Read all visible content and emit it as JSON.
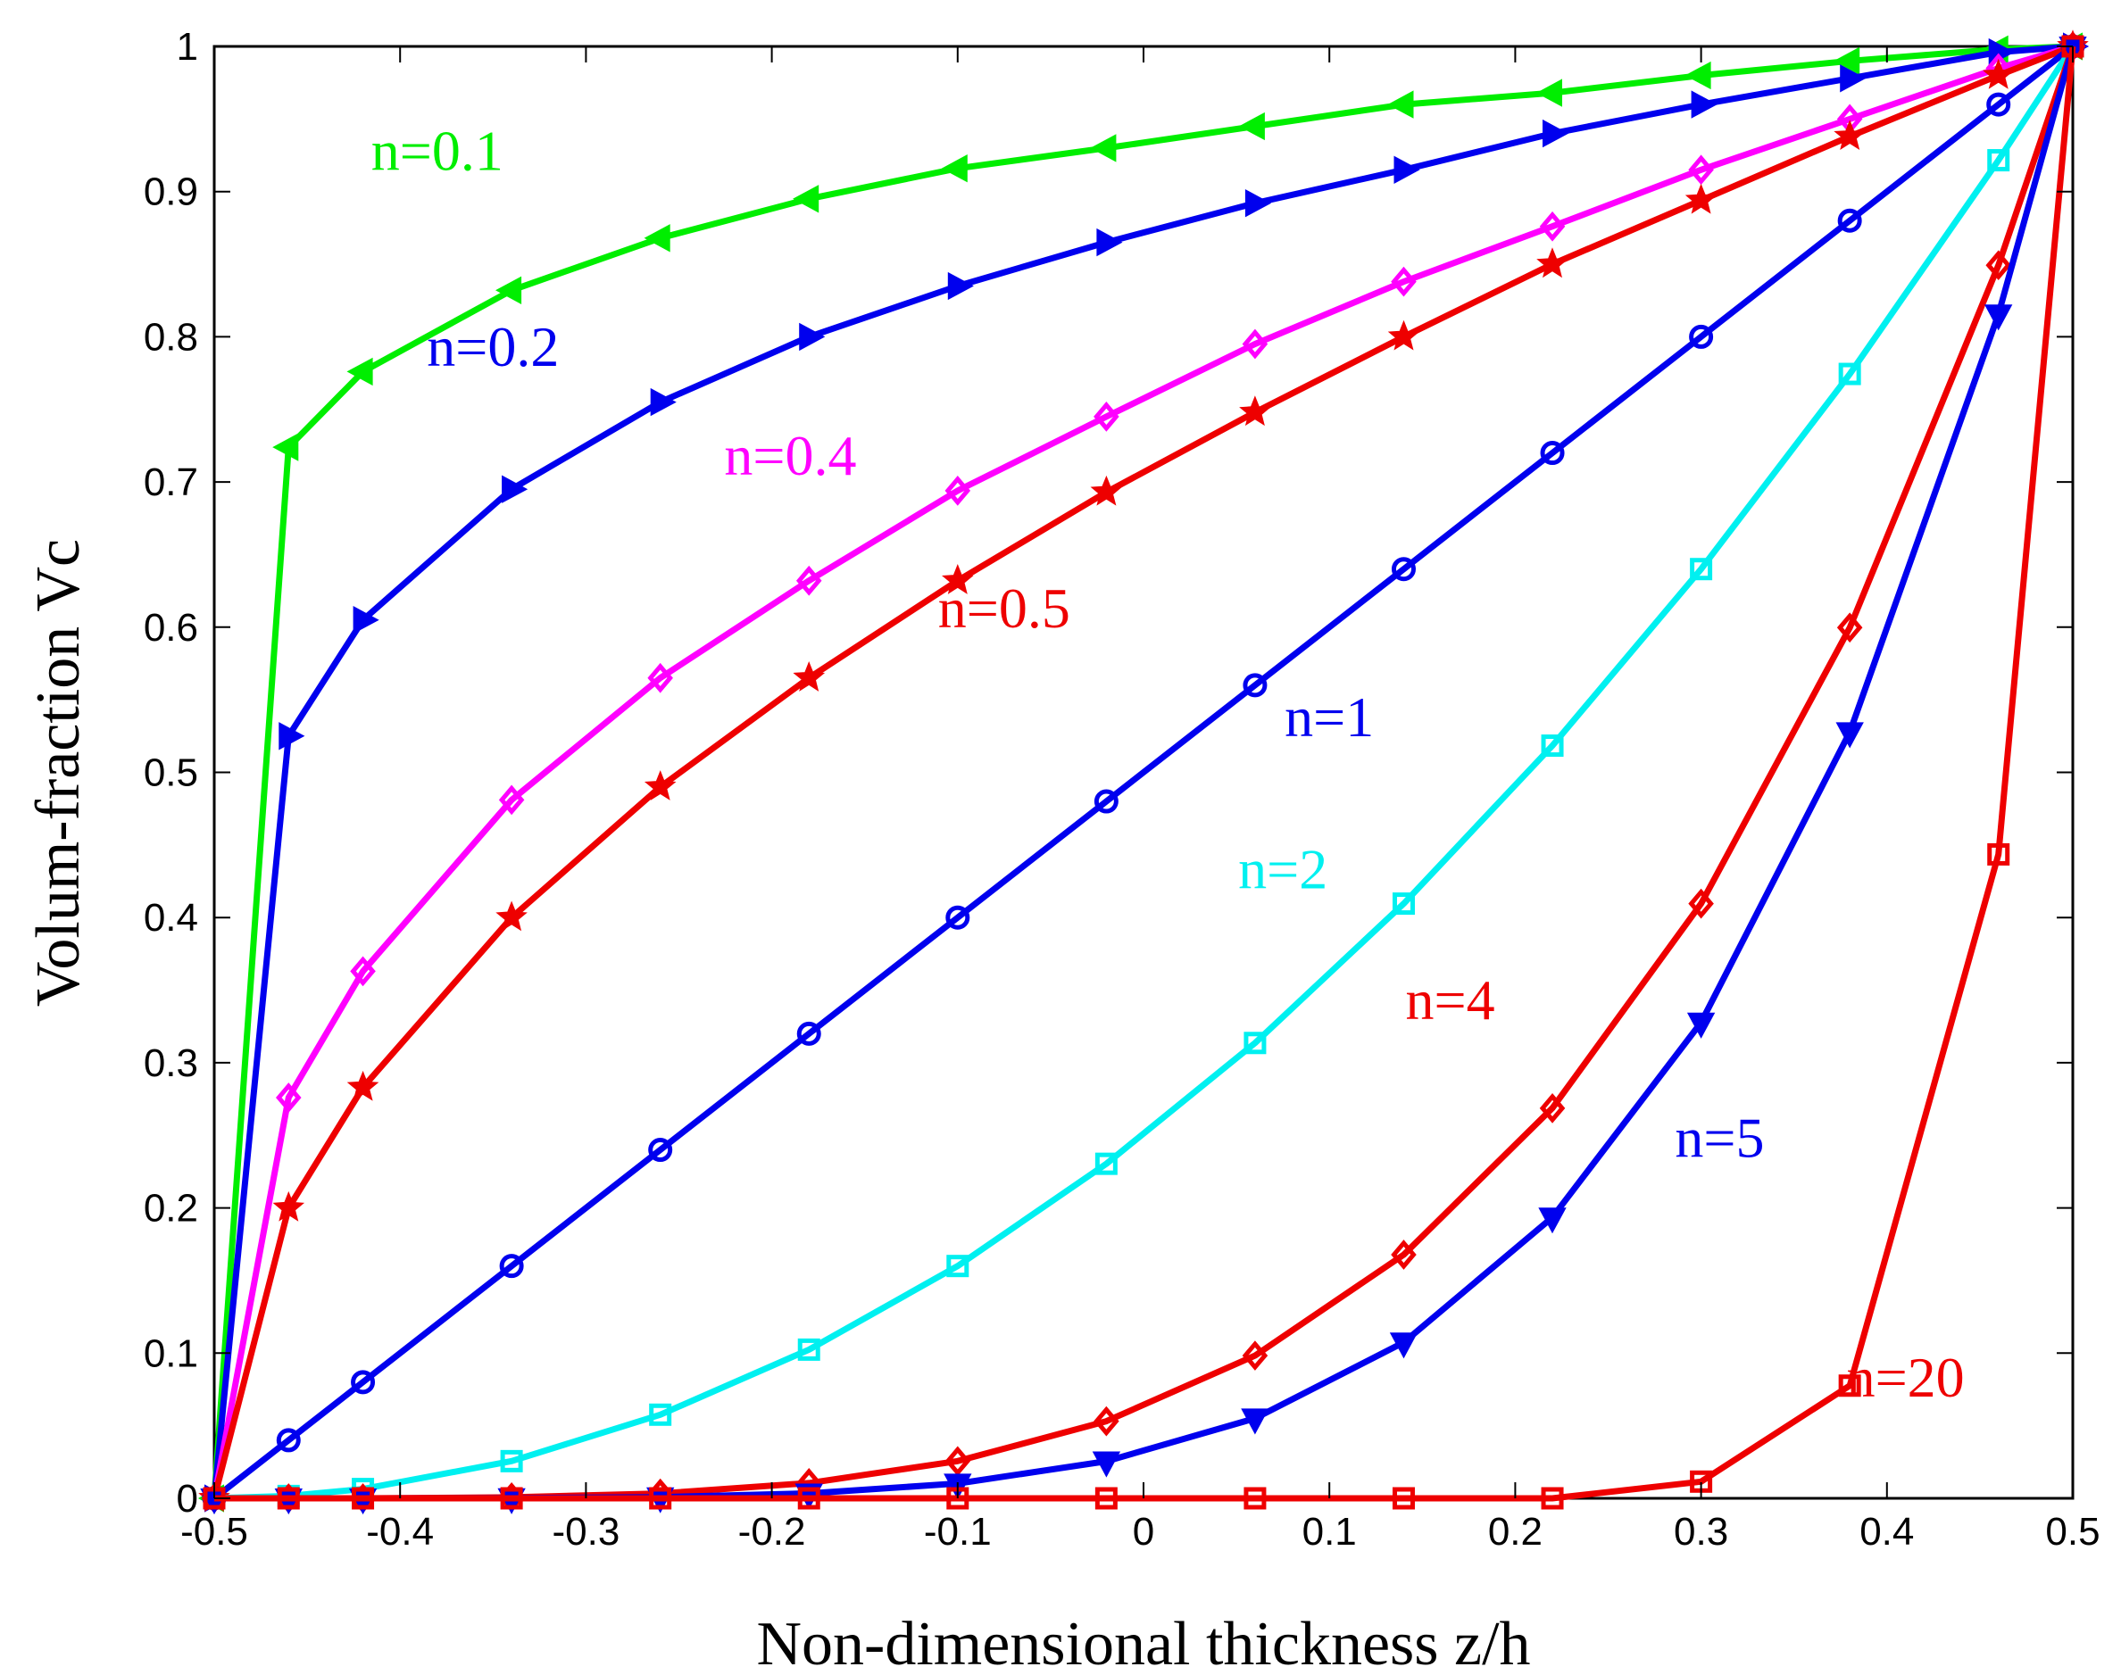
{
  "chart_data": {
    "type": "line",
    "title": "",
    "xlabel": "Non-dimensional thickness z/h",
    "ylabel": "Volum-fraction Vc",
    "xlim": [
      -0.5,
      0.5
    ],
    "ylim": [
      0,
      1
    ],
    "grid": false,
    "xticks": [
      -0.5,
      -0.4,
      -0.3,
      -0.2,
      -0.1,
      0,
      0.1,
      0.2,
      0.3,
      0.4,
      0.5
    ],
    "xtick_labels": [
      "-0.5",
      "-0.4",
      "-0.3",
      "-0.2",
      "-0.1",
      "0",
      "0.1",
      "0.2",
      "0.3",
      "0.4",
      "0.5"
    ],
    "yticks": [
      0,
      0.1,
      0.2,
      0.3,
      0.4,
      0.5,
      0.6,
      0.7,
      0.8,
      0.9,
      1
    ],
    "ytick_labels": [
      "0",
      "0.1",
      "0.2",
      "0.3",
      "0.4",
      "0.5",
      "0.6",
      "0.7",
      "0.8",
      "0.9",
      "1"
    ],
    "x": [
      -0.5,
      -0.46,
      -0.42,
      -0.34,
      -0.26,
      -0.18,
      -0.1,
      -0.02,
      0.06,
      0.14,
      0.22,
      0.3,
      0.38,
      0.46,
      0.5
    ],
    "series": [
      {
        "name": "n=0.1",
        "color": "#00ee00",
        "marker": "triangle-left",
        "values": [
          0,
          0.724,
          0.776,
          0.832,
          0.868,
          0.895,
          0.916,
          0.93,
          0.945,
          0.96,
          0.968,
          0.98,
          0.99,
          0.998,
          1
        ],
        "label": {
          "x": -0.38,
          "y": 0.915
        }
      },
      {
        "name": "n=0.2",
        "color": "#0000ee",
        "marker": "triangle-right",
        "values": [
          0,
          0.525,
          0.605,
          0.695,
          0.755,
          0.8,
          0.835,
          0.865,
          0.892,
          0.915,
          0.94,
          0.96,
          0.978,
          0.996,
          1
        ],
        "label": {
          "x": -0.35,
          "y": 0.78
        }
      },
      {
        "name": "n=0.4",
        "color": "#ff00ff",
        "marker": "diamond",
        "values": [
          0,
          0.276,
          0.363,
          0.481,
          0.565,
          0.632,
          0.694,
          0.745,
          0.795,
          0.838,
          0.876,
          0.915,
          0.95,
          0.985,
          1
        ],
        "label": {
          "x": -0.19,
          "y": 0.705
        }
      },
      {
        "name": "n=0.5",
        "color": "#ee0000",
        "marker": "star",
        "values": [
          0,
          0.2,
          0.283,
          0.4,
          0.49,
          0.565,
          0.632,
          0.693,
          0.748,
          0.8,
          0.85,
          0.894,
          0.938,
          0.98,
          1
        ],
        "label": {
          "x": -0.075,
          "y": 0.6
        }
      },
      {
        "name": "n=1",
        "color": "#0000ee",
        "marker": "circle",
        "values": [
          0,
          0.04,
          0.08,
          0.16,
          0.24,
          0.32,
          0.4,
          0.48,
          0.56,
          0.64,
          0.72,
          0.8,
          0.88,
          0.96,
          1
        ],
        "label": {
          "x": 0.1,
          "y": 0.525
        }
      },
      {
        "name": "n=2",
        "color": "#00f0f0",
        "marker": "square",
        "values": [
          0,
          0.0016,
          0.0064,
          0.0256,
          0.0576,
          0.1024,
          0.16,
          0.2304,
          0.3136,
          0.4096,
          0.5184,
          0.64,
          0.7744,
          0.9216,
          1
        ],
        "label": {
          "x": 0.075,
          "y": 0.42
        }
      },
      {
        "name": "n=4",
        "color": "#ee0000",
        "marker": "diamond",
        "values": [
          0,
          0,
          0,
          0.0007,
          0.0033,
          0.0105,
          0.0256,
          0.0531,
          0.0983,
          0.1678,
          0.2687,
          0.4096,
          0.5997,
          0.8493,
          1
        ],
        "label": {
          "x": 0.165,
          "y": 0.33
        }
      },
      {
        "name": "n=5",
        "color": "#0000ee",
        "marker": "triangle-down",
        "values": [
          0,
          0,
          0,
          0.0001,
          0.0008,
          0.0034,
          0.0102,
          0.0255,
          0.0551,
          0.1074,
          0.1935,
          0.3277,
          0.5277,
          0.8154,
          1
        ],
        "label": {
          "x": 0.31,
          "y": 0.235
        }
      },
      {
        "name": "n=20",
        "color": "#ee0000",
        "marker": "square",
        "values": [
          0,
          0,
          0,
          0,
          0,
          0,
          0,
          0,
          0,
          0,
          0,
          0.0115,
          0.0776,
          0.4435,
          1
        ],
        "label": {
          "x": 0.41,
          "y": 0.07
        }
      }
    ]
  }
}
